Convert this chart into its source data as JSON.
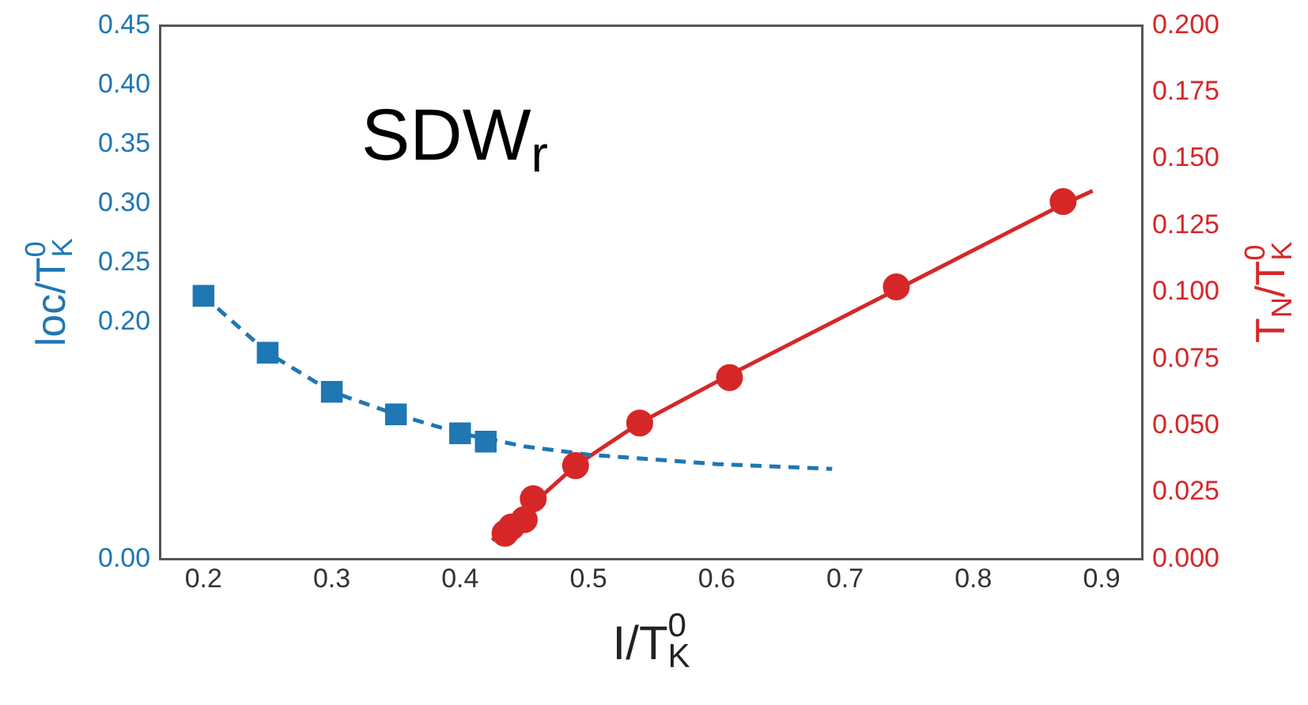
{
  "chart_data": {
    "type": "scatter",
    "xlabel": "I/T$^{0}$$_{K}$",
    "ylabel": "loc/T$^{0}$$_{K}$",
    "y2label": "T$_{N}$/T$^{0}$$_{K}$",
    "annotations": [
      "SDW$_{r}$"
    ],
    "xlim": [
      0.166,
      0.932
    ],
    "xticks": [
      {
        "value": 0.2,
        "label": "0.2"
      },
      {
        "value": 0.3,
        "label": "0.3"
      },
      {
        "value": 0.4,
        "label": "0.4"
      },
      {
        "value": 0.5,
        "label": "0.5"
      },
      {
        "value": 0.6,
        "label": "0.6"
      },
      {
        "value": 0.7,
        "label": "0.7"
      },
      {
        "value": 0.8,
        "label": "0.8"
      },
      {
        "value": 0.9,
        "label": "0.9"
      }
    ],
    "ylim": [
      0,
      0.45
    ],
    "yticks": [
      {
        "value": 0,
        "label": "0.00"
      },
      {
        "value": 0.2,
        "label": "0.20"
      },
      {
        "value": 0.25,
        "label": "0.25"
      },
      {
        "value": 0.3,
        "label": "0.30"
      },
      {
        "value": 0.35,
        "label": "0.35"
      },
      {
        "value": 0.4,
        "label": "0.40"
      },
      {
        "value": 0.45,
        "label": "0.45"
      }
    ],
    "y2lim": [
      0,
      0.2
    ],
    "y2ticks": [
      {
        "value": 0,
        "label": "0.000"
      },
      {
        "value": 0.025,
        "label": "0.025"
      },
      {
        "value": 0.05,
        "label": "0.050"
      },
      {
        "value": 0.075,
        "label": "0.075"
      },
      {
        "value": 0.1,
        "label": "0.100"
      },
      {
        "value": 0.125,
        "label": "0.125"
      },
      {
        "value": 0.15,
        "label": "0.150"
      },
      {
        "value": 0.175,
        "label": "0.175"
      },
      {
        "value": 0.2,
        "label": "0.200"
      }
    ],
    "series": [
      {
        "type": "line",
        "color": "#1f77b4",
        "line_style": "dashed",
        "marker": "none",
        "x": [
          0.2,
          0.25,
          0.3,
          0.35,
          0.4,
          0.45,
          0.5,
          0.55,
          0.6,
          0.69
        ],
        "values": [
          0.222,
          0.174,
          0.141,
          0.122,
          0.106,
          0.095,
          0.088,
          0.084,
          0.08,
          0.076
        ]
      },
      {
        "type": "scatter",
        "color": "#1f77b4",
        "marker": "square",
        "x": [
          0.2,
          0.25,
          0.3,
          0.35,
          0.4,
          0.42
        ],
        "values": [
          0.222,
          0.174,
          0.141,
          0.122,
          0.106,
          0.099
        ]
      },
      {
        "type": "line",
        "color": "#d62728",
        "line_style": "solid",
        "marker": "none",
        "axis": "y2",
        "x": [
          0.425,
          0.49,
          0.54,
          0.61,
          0.74,
          0.87,
          0.893
        ],
        "values": [
          0.007,
          0.035,
          0.051,
          0.069,
          0.101,
          0.133,
          0.138
        ]
      },
      {
        "type": "scatter",
        "color": "#d62728",
        "marker": "circle",
        "axis": "y2",
        "x": [
          0.435,
          0.44,
          0.45,
          0.457,
          0.49,
          0.54,
          0.61,
          0.74,
          0.87
        ],
        "values": [
          0.0096,
          0.012,
          0.0147,
          0.0226,
          0.035,
          0.051,
          0.068,
          0.102,
          0.134
        ]
      }
    ]
  }
}
